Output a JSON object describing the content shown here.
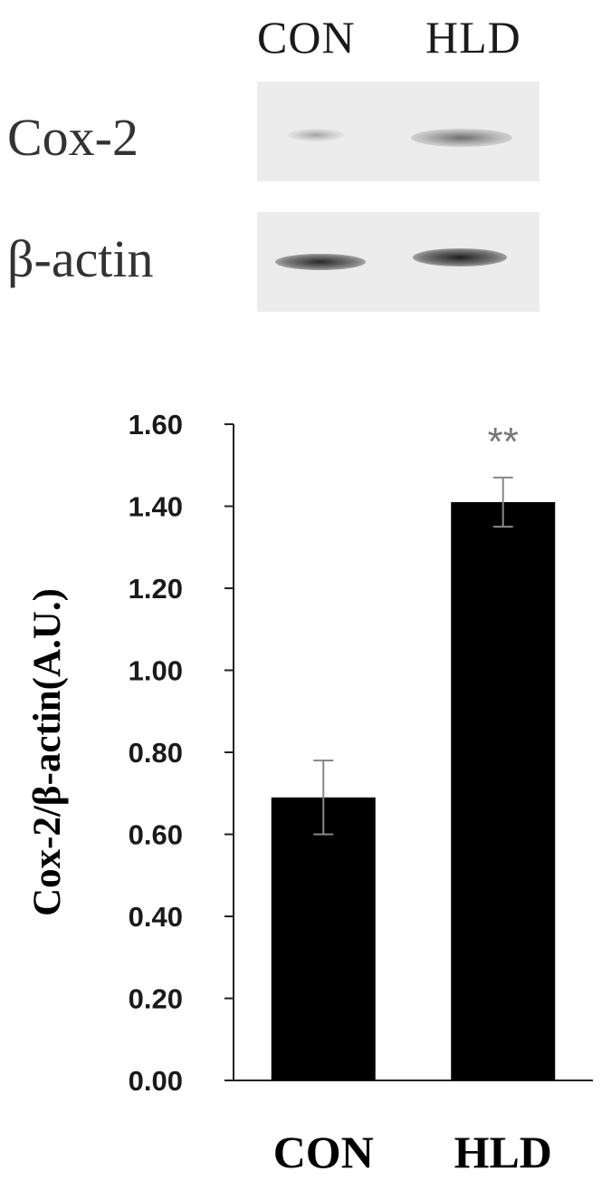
{
  "blot": {
    "lane_labels": [
      "CON",
      "HLD"
    ],
    "rows": [
      {
        "label": "Cox-2"
      },
      {
        "label": "β-actin"
      }
    ]
  },
  "chart_data": {
    "type": "bar",
    "categories": [
      "CON",
      "HLD"
    ],
    "series": [
      {
        "values": [
          0.69,
          1.41
        ],
        "error": [
          0.09,
          0.06
        ]
      }
    ],
    "ylabel": "Cox-2/β-actin(A.U.)",
    "ylim": [
      0,
      1.6
    ],
    "yticks": [
      "0.00",
      "0.20",
      "0.40",
      "0.60",
      "0.80",
      "1.00",
      "1.20",
      "1.40",
      "1.60"
    ],
    "annotations": [
      {
        "category": "HLD",
        "text": "**"
      }
    ],
    "bar_color": "#000000",
    "grid": false
  }
}
